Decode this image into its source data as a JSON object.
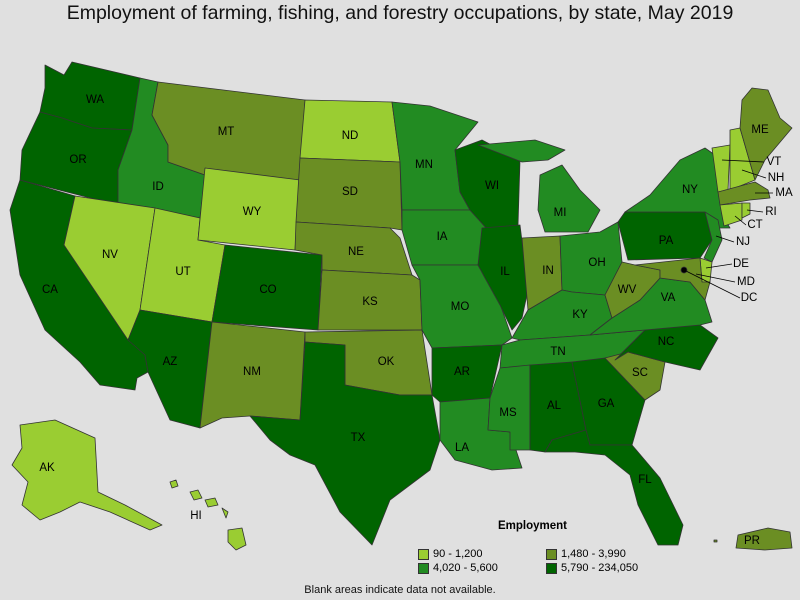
{
  "title": "Employment of farming, fishing, and forestry occupations, by state, May 2019",
  "legend": {
    "title": "Employment",
    "ranges": [
      {
        "label": "90 - 1,200",
        "color": "#9acd32"
      },
      {
        "label": "4,020 - 5,600",
        "color": "#228b22"
      },
      {
        "label": "1,480 - 3,990",
        "color": "#6b8e23"
      },
      {
        "label": "5,790 - 234,050",
        "color": "#006400"
      }
    ]
  },
  "footnote": "Blank areas indicate data not available.",
  "states": [
    {
      "abbr": "WA",
      "bin": 3
    },
    {
      "abbr": "OR",
      "bin": 3
    },
    {
      "abbr": "CA",
      "bin": 3
    },
    {
      "abbr": "ID",
      "bin": 1
    },
    {
      "abbr": "NV",
      "bin": 0
    },
    {
      "abbr": "UT",
      "bin": 0
    },
    {
      "abbr": "AZ",
      "bin": 3
    },
    {
      "abbr": "MT",
      "bin": 2
    },
    {
      "abbr": "WY",
      "bin": 0
    },
    {
      "abbr": "CO",
      "bin": 3
    },
    {
      "abbr": "NM",
      "bin": 2
    },
    {
      "abbr": "ND",
      "bin": 0
    },
    {
      "abbr": "SD",
      "bin": 2
    },
    {
      "abbr": "NE",
      "bin": 2
    },
    {
      "abbr": "KS",
      "bin": 2
    },
    {
      "abbr": "OK",
      "bin": 2
    },
    {
      "abbr": "TX",
      "bin": 3
    },
    {
      "abbr": "MN",
      "bin": 1
    },
    {
      "abbr": "IA",
      "bin": 1
    },
    {
      "abbr": "MO",
      "bin": 1
    },
    {
      "abbr": "AR",
      "bin": 3
    },
    {
      "abbr": "LA",
      "bin": 1
    },
    {
      "abbr": "WI",
      "bin": 3
    },
    {
      "abbr": "IL",
      "bin": 3
    },
    {
      "abbr": "MI",
      "bin": 1
    },
    {
      "abbr": "IN",
      "bin": 2
    },
    {
      "abbr": "OH",
      "bin": 1
    },
    {
      "abbr": "KY",
      "bin": 1
    },
    {
      "abbr": "TN",
      "bin": 1
    },
    {
      "abbr": "MS",
      "bin": 1
    },
    {
      "abbr": "AL",
      "bin": 3
    },
    {
      "abbr": "GA",
      "bin": 3
    },
    {
      "abbr": "FL",
      "bin": 3
    },
    {
      "abbr": "SC",
      "bin": 2
    },
    {
      "abbr": "NC",
      "bin": 3
    },
    {
      "abbr": "VA",
      "bin": 1
    },
    {
      "abbr": "WV",
      "bin": 2
    },
    {
      "abbr": "PA",
      "bin": 3
    },
    {
      "abbr": "NY",
      "bin": 1
    },
    {
      "abbr": "VT",
      "bin": 0
    },
    {
      "abbr": "NH",
      "bin": 0
    },
    {
      "abbr": "ME",
      "bin": 2
    },
    {
      "abbr": "MA",
      "bin": 2
    },
    {
      "abbr": "RI",
      "bin": 0
    },
    {
      "abbr": "CT",
      "bin": 0
    },
    {
      "abbr": "NJ",
      "bin": 1
    },
    {
      "abbr": "DE",
      "bin": 0
    },
    {
      "abbr": "MD",
      "bin": 2
    },
    {
      "abbr": "DC",
      "bin": 0
    },
    {
      "abbr": "AK",
      "bin": 0
    },
    {
      "abbr": "HI",
      "bin": 0
    },
    {
      "abbr": "PR",
      "bin": 2
    }
  ]
}
